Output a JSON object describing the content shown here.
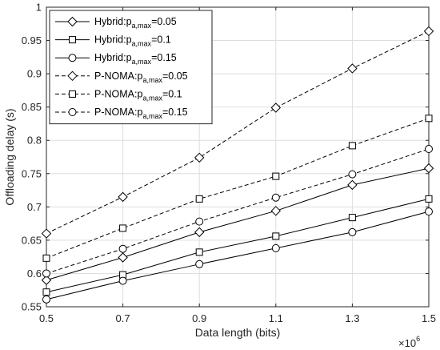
{
  "chart_data": {
    "type": "line",
    "xlabel": "Data length (bits)",
    "ylabel": "Offloading delay (s)",
    "x_multiplier_label": "×10",
    "x_multiplier_exp": "6",
    "xlim": [
      0.5,
      1.5
    ],
    "ylim": [
      0.55,
      1.0
    ],
    "x": [
      0.5,
      0.7,
      0.9,
      1.1,
      1.3,
      1.5
    ],
    "x_tick_labels": [
      "0.5",
      "0.7",
      "0.9",
      "1.1",
      "1.3",
      "1.5"
    ],
    "y_ticks": [
      0.55,
      0.6,
      0.65,
      0.7,
      0.75,
      0.8,
      0.85,
      0.9,
      0.95,
      1.0
    ],
    "y_tick_labels": [
      "0.55",
      "0.6",
      "0.65",
      "0.7",
      "0.75",
      "0.8",
      "0.85",
      "0.9",
      "0.95",
      "1"
    ],
    "grid": true,
    "legend_position": "top-left",
    "series": [
      {
        "name": "Hybrid:p_{a,max}=0.05",
        "legend_main": "Hybrid:p",
        "legend_sub": "a,max",
        "legend_tail": "=0.05",
        "marker": "diamond",
        "dash": "solid",
        "values": [
          0.59,
          0.624,
          0.662,
          0.694,
          0.733,
          0.758
        ]
      },
      {
        "name": "Hybrid:p_{a,max}=0.1",
        "legend_main": "Hybrid:p",
        "legend_sub": "a,max",
        "legend_tail": "=0.1",
        "marker": "square",
        "dash": "solid",
        "values": [
          0.572,
          0.598,
          0.632,
          0.656,
          0.684,
          0.712
        ]
      },
      {
        "name": "Hybrid:p_{a,max}=0.15",
        "legend_main": "Hybrid:p",
        "legend_sub": "a,max",
        "legend_tail": "=0.15",
        "marker": "circle",
        "dash": "solid",
        "values": [
          0.561,
          0.589,
          0.614,
          0.638,
          0.662,
          0.693
        ]
      },
      {
        "name": "P-NOMA:p_{a,max}=0.05",
        "legend_main": "P-NOMA:p",
        "legend_sub": "a,max",
        "legend_tail": "=0.05",
        "marker": "diamond",
        "dash": "dashed",
        "values": [
          0.66,
          0.715,
          0.774,
          0.849,
          0.908,
          0.964
        ]
      },
      {
        "name": "P-NOMA:p_{a,max}=0.1",
        "legend_main": "P-NOMA:p",
        "legend_sub": "a,max",
        "legend_tail": "=0.1",
        "marker": "square",
        "dash": "dashed",
        "values": [
          0.623,
          0.668,
          0.712,
          0.746,
          0.792,
          0.833
        ]
      },
      {
        "name": "P-NOMA:p_{a,max}=0.15",
        "legend_main": "P-NOMA:p",
        "legend_sub": "a,max",
        "legend_tail": "=0.15",
        "marker": "circle",
        "dash": "dashed",
        "values": [
          0.6,
          0.637,
          0.678,
          0.714,
          0.749,
          0.787
        ]
      }
    ]
  }
}
